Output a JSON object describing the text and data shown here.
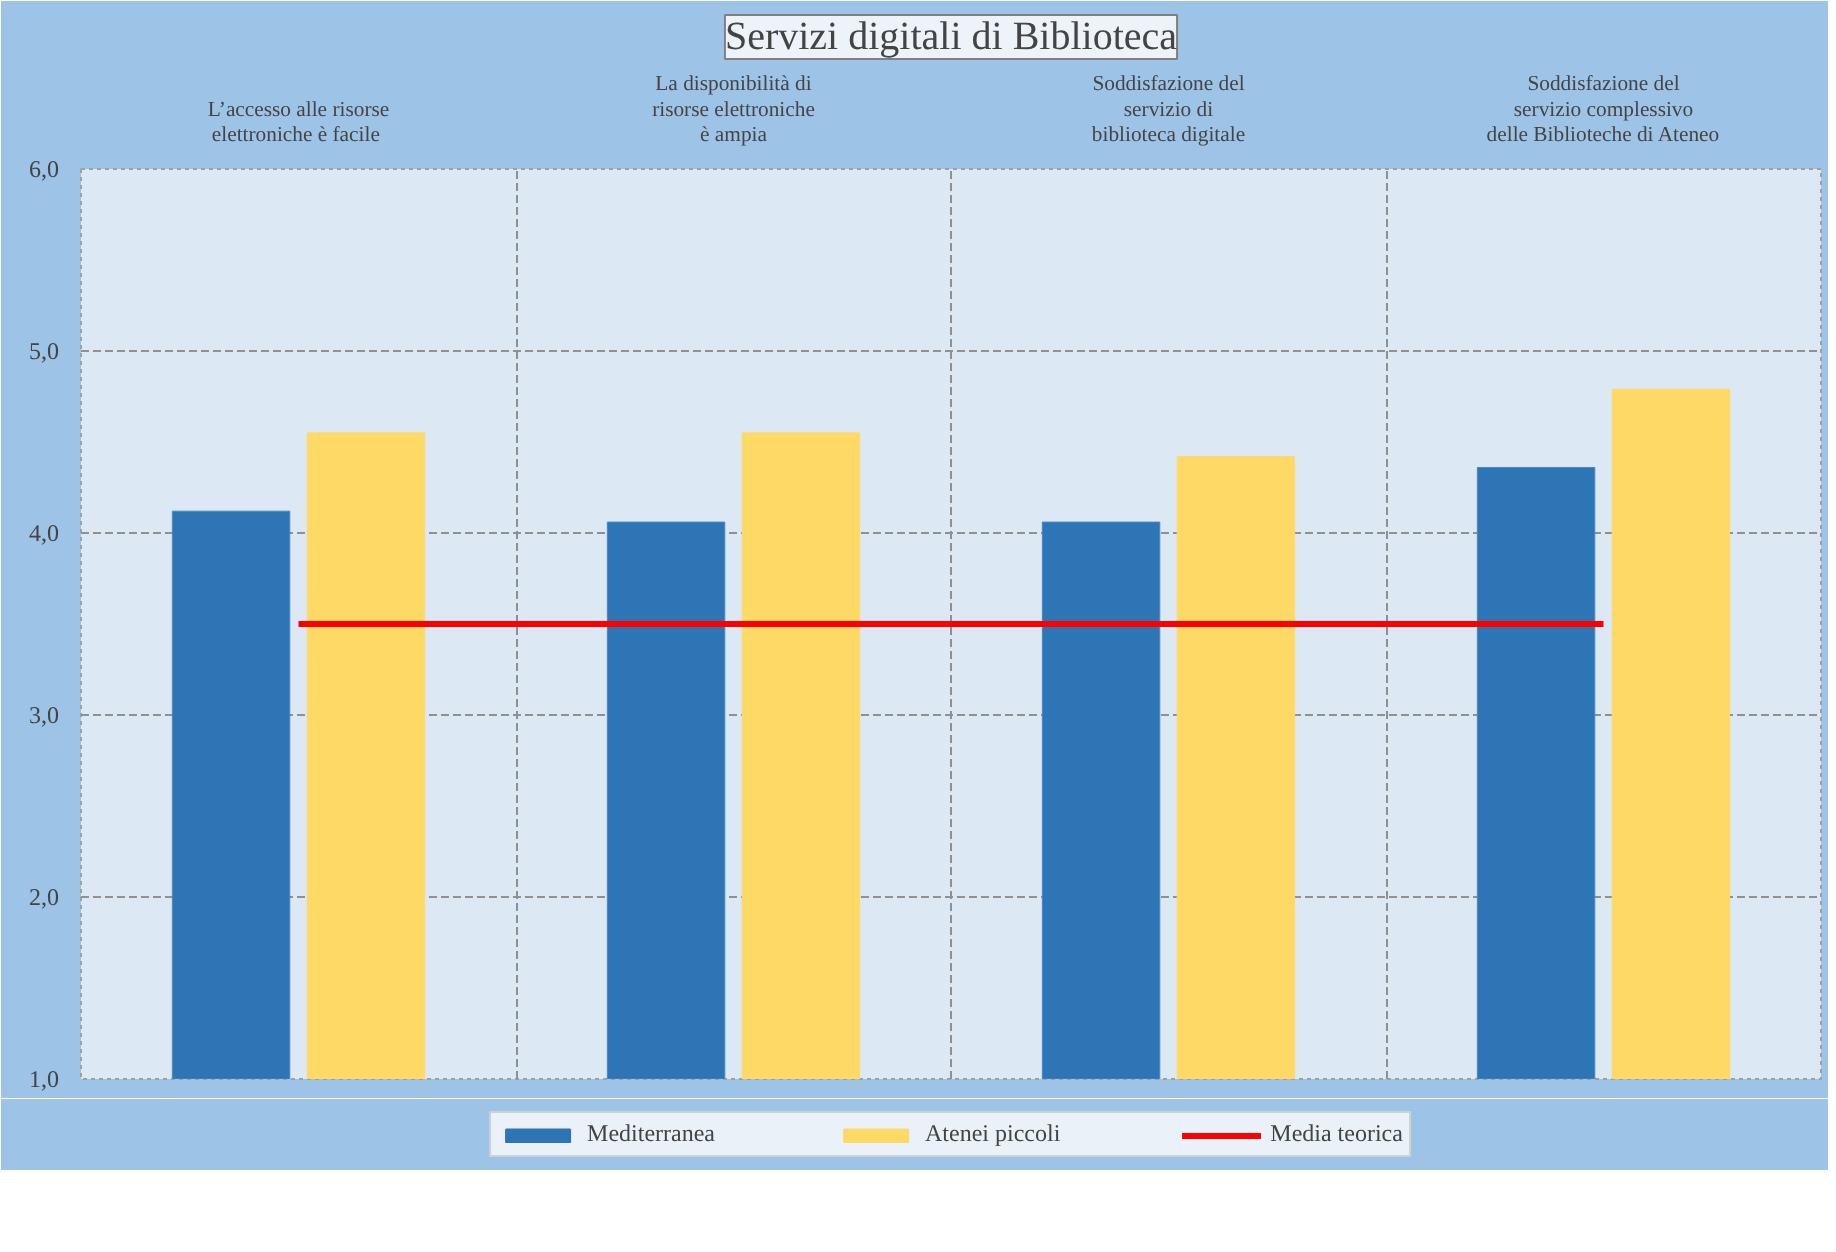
{
  "chart_data": {
    "type": "bar",
    "title": "Servizi digitali di Biblioteca",
    "categories": [
      "L’accesso alle risorse\nelettroniche  è facile",
      "La disponibilità di\nrisorse elettroniche\nè ampia",
      "Soddisfazione del\nservizio di\nbiblioteca digitale",
      "Soddisfazione del\nservizio complessivo\ndelle Biblioteche di Ateneo"
    ],
    "series": [
      {
        "name": "Mediterranea",
        "color": "#2e75b6",
        "values": [
          4.12,
          4.06,
          4.06,
          4.36
        ]
      },
      {
        "name": "Atenei piccoli",
        "color": "#ffd966",
        "values": [
          4.55,
          4.55,
          4.42,
          4.79
        ]
      },
      {
        "name": "Media teorica",
        "type": "line",
        "color": "#ff0000",
        "values": [
          3.5,
          3.5,
          3.5,
          3.5
        ]
      }
    ],
    "ylim": [
      1,
      6
    ],
    "yticks": [
      {
        "value": 1,
        "label": "1,0"
      },
      {
        "value": 2,
        "label": "2,0"
      },
      {
        "value": 3,
        "label": "3,0"
      },
      {
        "value": 4,
        "label": "4,0"
      },
      {
        "value": 5,
        "label": "5,0"
      },
      {
        "value": 6,
        "label": "6,0"
      }
    ],
    "grid": true,
    "legend": "bottom",
    "marker": "none",
    "line_style": "solid"
  }
}
